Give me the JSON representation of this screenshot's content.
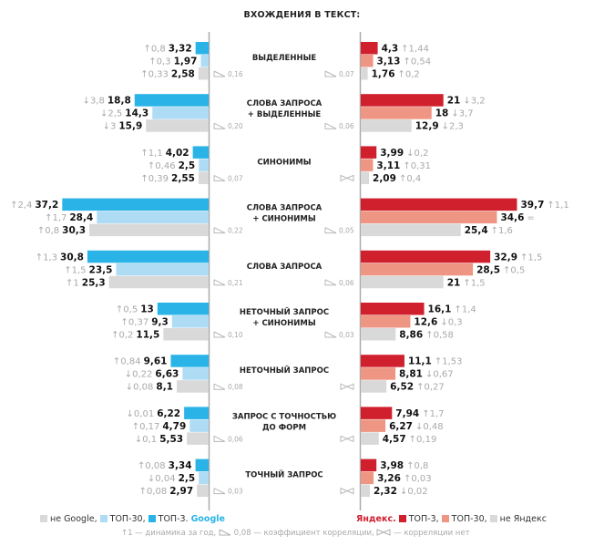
{
  "title": "ВХОЖДЕНИЯ В ТЕКСТ:",
  "colors": {
    "google_top3": "#29b3e6",
    "google_top30": "#aedcf5",
    "not_google": "#d9d9d9",
    "yandex_top3": "#d0202e",
    "yandex_top30": "#ee9683",
    "not_yandex": "#d9d9d9"
  },
  "legend": {
    "left": {
      "items": [
        {
          "label": "не Google,",
          "color": "#d9d9d9"
        },
        {
          "label": "ТОП-30,",
          "color": "#aedcf5"
        },
        {
          "label": "ТОП-3.",
          "color": "#29b3e6"
        }
      ],
      "brand": "Google"
    },
    "right": {
      "brand": "Яндекс.",
      "items": [
        {
          "label": "ТОП-3,",
          "color": "#d0202e"
        },
        {
          "label": "ТОП-30,",
          "color": "#ee9683"
        },
        {
          "label": "не Яндекс",
          "color": "#d9d9d9"
        }
      ]
    },
    "footnote": {
      "arrow_example": "↑1",
      "arrow_text": " — динамика за год, ",
      "corr_example": "0,08",
      "corr_text": " — коэффициент корреляции, ",
      "nocorr_text": " — корреляции нет"
    }
  },
  "chart_data": {
    "type": "bar",
    "orientation": "horizontal-butterfly",
    "title": "ВХОЖДЕНИЯ В ТЕКСТ:",
    "categories": [
      [
        "ВЫДЕЛЕННЫЕ"
      ],
      [
        "СЛОВА ЗАПРОСА",
        "+ ВЫДЕЛЕННЫЕ"
      ],
      [
        "СИНОНИМЫ"
      ],
      [
        "СЛОВА ЗАПРОСА",
        "+ СИНОНИМЫ"
      ],
      [
        "СЛОВА ЗАПРОСА"
      ],
      [
        "НЕТОЧНЫЙ ЗАПРОС",
        "+ СИНОНИМЫ"
      ],
      [
        "НЕТОЧНЫЙ ЗАПРОС"
      ],
      [
        "ЗАПРОС С ТОЧНОСТЬЮ",
        "ДО ФОРМ"
      ],
      [
        "ТОЧНЫЙ ЗАПРОС"
      ]
    ],
    "xlim": [
      0,
      40
    ],
    "google": {
      "series": [
        {
          "name": "ТОП-3",
          "values": [
            3.32,
            18.8,
            4.02,
            37.2,
            30.8,
            13,
            9.61,
            6.22,
            3.34
          ],
          "labels": [
            "3,32",
            "18,8",
            "4,02",
            "37,2",
            "30,8",
            "13",
            "9,61",
            "6,22",
            "3,34"
          ],
          "dynamics": [
            "↑0,8",
            "↓3,8",
            "↑1,1",
            "↑2,4",
            "↑1,3",
            "↑0,5",
            "↑0,84",
            "↓0,01",
            "↑0,08"
          ]
        },
        {
          "name": "ТОП-30",
          "values": [
            1.97,
            14.3,
            2.5,
            28.4,
            23.5,
            9.3,
            6.63,
            4.79,
            2.5
          ],
          "labels": [
            "1,97",
            "14,3",
            "2,5",
            "28,4",
            "23,5",
            "9,3",
            "6,63",
            "4,79",
            "2,5"
          ],
          "dynamics": [
            "↑0,3",
            "↓2,5",
            "↑0,46",
            "↑1,7",
            "↑1,5",
            "↑0,37",
            "↓0,22",
            "↑0,17",
            "↓0,04"
          ]
        },
        {
          "name": "не Google",
          "values": [
            2.58,
            15.9,
            2.55,
            30.3,
            25.3,
            11.5,
            8.1,
            5.53,
            2.97
          ],
          "labels": [
            "2,58",
            "15,9",
            "2,55",
            "30,3",
            "25,3",
            "11,5",
            "8,1",
            "5,53",
            "2,97"
          ],
          "dynamics": [
            "↑0,33",
            "↓3",
            "↑0,39",
            "↑0,8",
            "↑1",
            "↑0,2",
            "↓0,08",
            "↓0,1",
            "↑0,08"
          ]
        }
      ],
      "correlation": [
        "0,16",
        "0,20",
        "0,07",
        "0,22",
        "0,21",
        "0,10",
        "0,08",
        "0,06",
        "0,03"
      ]
    },
    "yandex": {
      "series": [
        {
          "name": "ТОП-3",
          "values": [
            4.3,
            21,
            3.99,
            39.7,
            32.9,
            16.1,
            11.1,
            7.94,
            3.98
          ],
          "labels": [
            "4,3",
            "21",
            "3,99",
            "39,7",
            "32,9",
            "16,1",
            "11,1",
            "7,94",
            "3,98"
          ],
          "dynamics": [
            "↑1,44",
            "↓3,2",
            "↓0,2",
            "↑1,1",
            "↑1,5",
            "↑1,4",
            "↑1,53",
            "↑1,7",
            "↑0,8"
          ]
        },
        {
          "name": "ТОП-30",
          "values": [
            3.13,
            18,
            3.11,
            34.6,
            28.5,
            12.6,
            8.81,
            6.27,
            3.26
          ],
          "labels": [
            "3,13",
            "18",
            "3,11",
            "34,6",
            "28,5",
            "12,6",
            "8,81",
            "6,27",
            "3,26"
          ],
          "dynamics": [
            "↑0,54",
            "↓3,7",
            "↑0,31",
            "=",
            "↑0,5",
            "↓0,3",
            "↓0,67",
            "↓0,48",
            "↑0,03"
          ]
        },
        {
          "name": "не Яндекс",
          "values": [
            1.76,
            12.9,
            2.09,
            25.4,
            21,
            8.86,
            6.52,
            4.57,
            2.32
          ],
          "labels": [
            "1,76",
            "12,9",
            "2,09",
            "25,4",
            "21",
            "8,86",
            "6,52",
            "4,57",
            "2,32"
          ],
          "dynamics": [
            "↑0,2",
            "↓2,3",
            "↑0,4",
            "↑1,6",
            "↑1,5",
            "↑0,58",
            "↑0,27",
            "↑0,19",
            "↓0,02"
          ]
        }
      ],
      "correlation": [
        "0,07",
        "0,06",
        null,
        "0,05",
        "0,06",
        "0,03",
        null,
        null,
        null
      ]
    }
  }
}
